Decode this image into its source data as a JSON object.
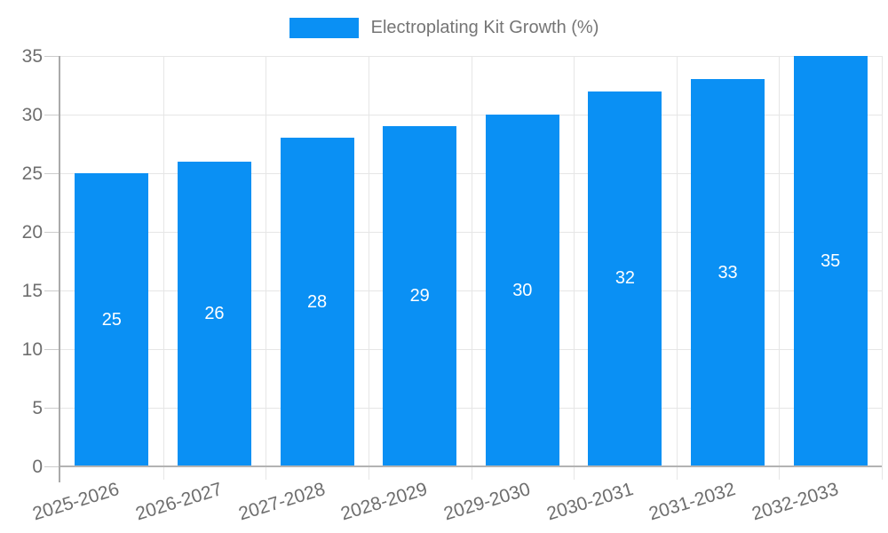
{
  "legend": {
    "label": "Electroplating Kit Growth (%)"
  },
  "chart_data": {
    "type": "bar",
    "title": "Electroplating Kit Growth (%)",
    "categories": [
      "2025-2026",
      "2026-2027",
      "2027-2028",
      "2028-2029",
      "2029-2030",
      "2030-2031",
      "2031-2032",
      "2032-2033"
    ],
    "values": [
      25,
      26,
      28,
      29,
      30,
      32,
      33,
      35
    ],
    "xlabel": "",
    "ylabel": "",
    "ylim": [
      0,
      35
    ],
    "yticks": [
      0,
      5,
      10,
      15,
      20,
      25,
      30,
      35
    ],
    "grid": true,
    "legend_position": "top-center",
    "colors": {
      "bar": "#0a90f4",
      "bar_value_text": "#ffffff",
      "gridline": "#e6e6e6",
      "axis_line": "#aaaaaa",
      "baseline": "#b3b3b3",
      "tick_mark": "#cccccc",
      "axis_text": "#6e6e6e",
      "legend_text": "#757575",
      "background": "#ffffff"
    }
  }
}
